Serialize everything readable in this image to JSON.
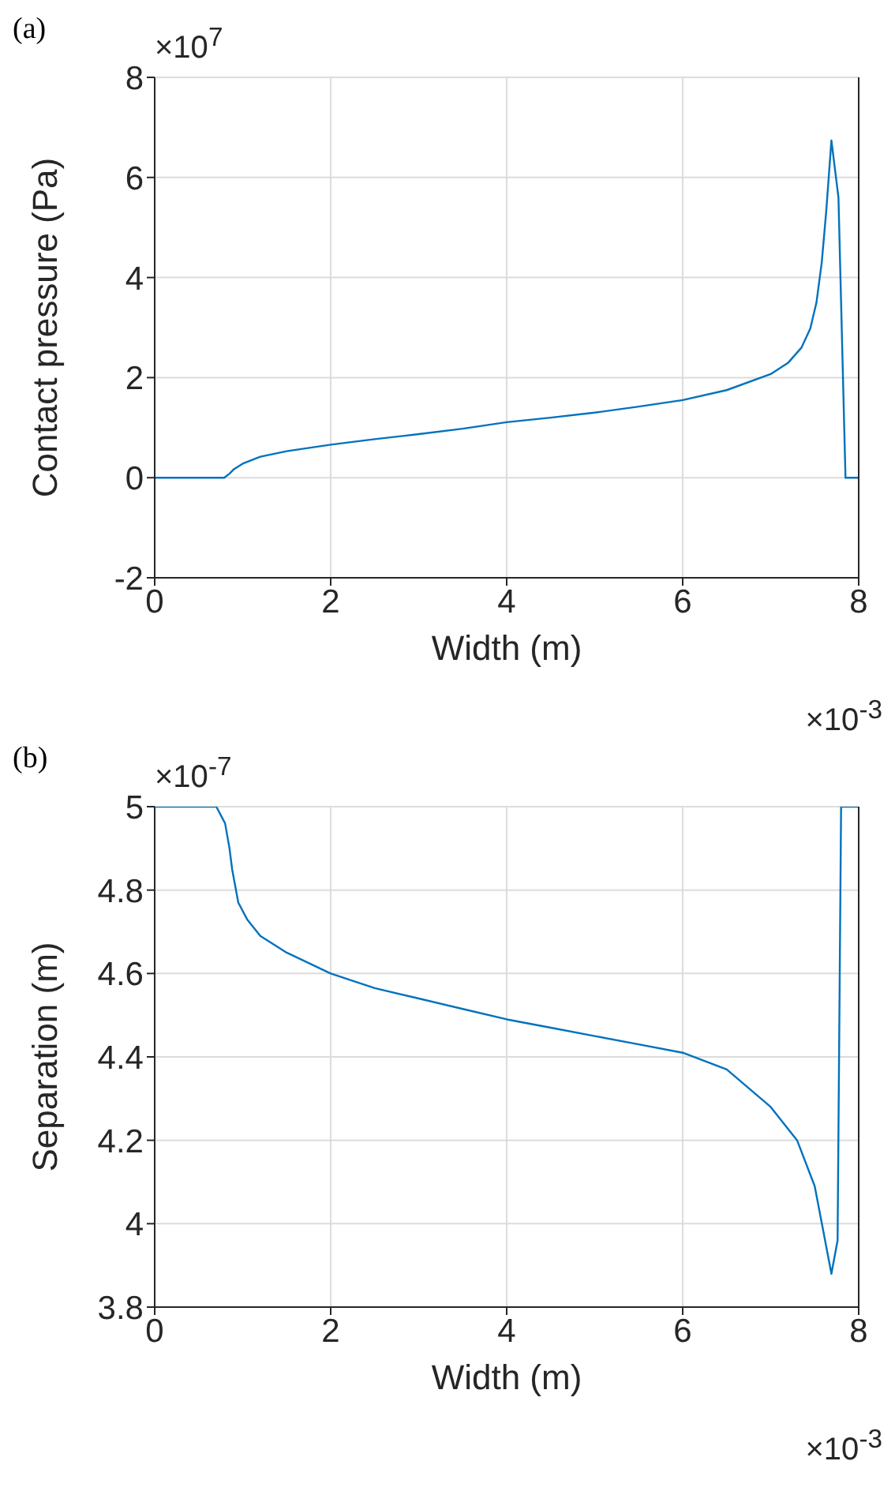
{
  "chart_data": [
    {
      "type": "line",
      "title": "(a)",
      "xlabel": "Width (m)",
      "ylabel": "Contact pressure (Pa)",
      "annotations": [
        "×10$^{7}$",
        "×10$^{-3}$"
      ],
      "xlim": [
        0,
        8
      ],
      "xticks": [
        0,
        2,
        4,
        6,
        8
      ],
      "ylim": [
        -2,
        8
      ],
      "yticks": [
        -2,
        0,
        2,
        4,
        6,
        8
      ],
      "grid": true,
      "marker": "none",
      "line_style": "solid",
      "series": [
        {
          "color": "#0072bd",
          "x": [
            0,
            0.5,
            0.79,
            0.85,
            0.9,
            1.0,
            1.2,
            1.5,
            2,
            2.5,
            3,
            3.5,
            4,
            4.5,
            5,
            5.5,
            6,
            6.5,
            7,
            7.2,
            7.35,
            7.45,
            7.52,
            7.58,
            7.63,
            7.69,
            7.77,
            7.85,
            8
          ],
          "values": [
            0,
            0,
            0,
            0.08,
            0.17,
            0.28,
            0.42,
            0.53,
            0.66,
            0.77,
            0.87,
            0.98,
            1.11,
            1.2,
            1.3,
            1.42,
            1.55,
            1.75,
            2.07,
            2.3,
            2.6,
            2.98,
            3.5,
            4.3,
            5.3,
            6.74,
            5.6,
            0,
            0
          ]
        }
      ]
    },
    {
      "type": "line",
      "title": "(b)",
      "xlabel": "Width (m)",
      "ylabel": "Separation (m)",
      "annotations": [
        "×10$^{-7}$",
        "×10$^{-3}$"
      ],
      "xlim": [
        0,
        8
      ],
      "xticks": [
        0,
        2,
        4,
        6,
        8
      ],
      "ylim": [
        3.8,
        5
      ],
      "yticks": [
        3.8,
        4,
        4.2,
        4.4,
        4.6,
        4.8,
        5
      ],
      "grid": true,
      "marker": "none",
      "line_style": "solid",
      "series": [
        {
          "color": "#0072bd",
          "x": [
            0,
            0.5,
            0.7,
            0.8,
            0.85,
            0.88,
            0.95,
            1.05,
            1.2,
            1.5,
            2,
            2.5,
            3,
            3.5,
            4,
            4.5,
            5,
            5.5,
            6,
            6.5,
            7,
            7.3,
            7.5,
            7.6,
            7.69,
            7.76,
            7.8,
            8
          ],
          "values": [
            5,
            5,
            5,
            4.96,
            4.9,
            4.85,
            4.77,
            4.73,
            4.69,
            4.65,
            4.6,
            4.565,
            4.54,
            4.515,
            4.49,
            4.47,
            4.45,
            4.43,
            4.41,
            4.37,
            4.28,
            4.2,
            4.09,
            3.98,
            3.88,
            3.96,
            5,
            5
          ]
        }
      ]
    }
  ]
}
